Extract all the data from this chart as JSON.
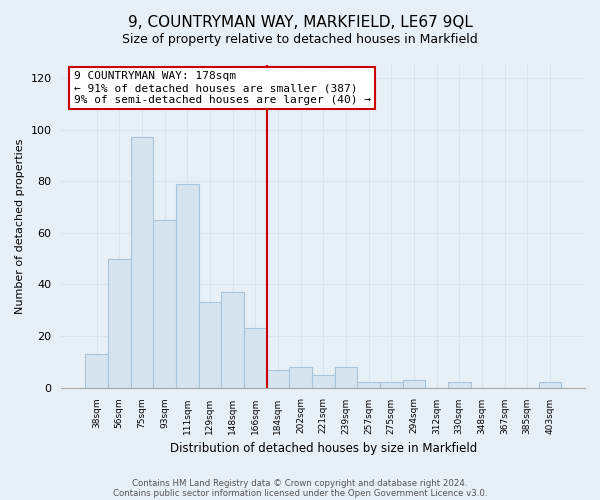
{
  "title": "9, COUNTRYMAN WAY, MARKFIELD, LE67 9QL",
  "subtitle": "Size of property relative to detached houses in Markfield",
  "xlabel": "Distribution of detached houses by size in Markfield",
  "ylabel": "Number of detached properties",
  "bin_labels": [
    "38sqm",
    "56sqm",
    "75sqm",
    "93sqm",
    "111sqm",
    "129sqm",
    "148sqm",
    "166sqm",
    "184sqm",
    "202sqm",
    "221sqm",
    "239sqm",
    "257sqm",
    "275sqm",
    "294sqm",
    "312sqm",
    "330sqm",
    "348sqm",
    "367sqm",
    "385sqm",
    "403sqm"
  ],
  "bar_heights": [
    13,
    50,
    97,
    65,
    79,
    33,
    37,
    23,
    7,
    8,
    5,
    8,
    2,
    2,
    3,
    0,
    2,
    0,
    0,
    0,
    2
  ],
  "bar_color": "#d6e4f0",
  "bar_edge_color": "#a8c4d8",
  "vline_x": 7.5,
  "vline_color": "#cc0000",
  "annotation_text": "9 COUNTRYMAN WAY: 178sqm\n← 91% of detached houses are smaller (387)\n9% of semi-detached houses are larger (40) →",
  "annotation_box_color": "#ffffff",
  "annotation_box_edge": "#cc0000",
  "ylim": [
    0,
    125
  ],
  "yticks": [
    0,
    20,
    40,
    60,
    80,
    100,
    120
  ],
  "grid_color": "#d8e4ee",
  "footer1": "Contains HM Land Registry data © Crown copyright and database right 2024.",
  "footer2": "Contains public sector information licensed under the Open Government Licence v3.0.",
  "bg_color": "#e8f0f7"
}
